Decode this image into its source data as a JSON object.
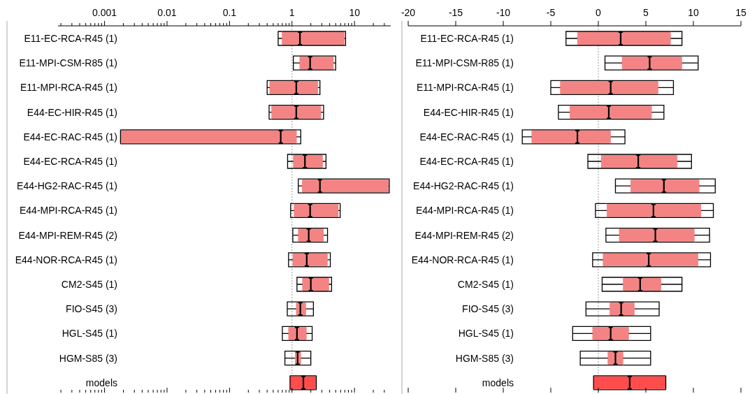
{
  "chart_data": [
    {
      "type": "box",
      "orientation": "horizontal",
      "log": "x",
      "categories": [
        "E11-EC-RCA-R45 (1)",
        "E11-MPI-CSM-R85 (1)",
        "E11-MPI-RCA-R45 (1)",
        "E44-EC-HIR-R45 (1)",
        "E44-EC-RAC-R45 (1)",
        "E44-EC-RCA-R45 (1)",
        "E44-HG2-RAC-R45 (1)",
        "E44-MPI-RCA-R45 (1)",
        "E44-MPI-REM-R45 (2)",
        "E44-NOR-RCA-R45 (1)",
        "CM2-S45 (1)",
        "FIO-S45 (3)",
        "HGL-S45 (1)",
        "HGM-S85 (3)",
        "models"
      ],
      "xlim": [
        0.00018,
        38
      ],
      "xticks": [
        {
          "value": 0.0002,
          "label": null
        },
        {
          "value": 0.0003,
          "label": null
        },
        {
          "value": 0.0004,
          "label": null
        },
        {
          "value": 0.0005,
          "label": null
        },
        {
          "value": 0.0006,
          "label": null
        },
        {
          "value": 0.0007,
          "label": null
        },
        {
          "value": 0.0008,
          "label": null
        },
        {
          "value": 0.0009,
          "label": null
        },
        0.001,
        {
          "value": 0.002,
          "label": null
        },
        {
          "value": 0.003,
          "label": null
        },
        {
          "value": 0.004,
          "label": null
        },
        {
          "value": 0.005,
          "label": null
        },
        {
          "value": 0.006,
          "label": null
        },
        {
          "value": 0.007,
          "label": null
        },
        {
          "value": 0.008,
          "label": null
        },
        {
          "value": 0.009,
          "label": null
        },
        0.01,
        {
          "value": 0.02,
          "label": null
        },
        {
          "value": 0.03,
          "label": null
        },
        {
          "value": 0.04,
          "label": null
        },
        {
          "value": 0.05,
          "label": null
        },
        {
          "value": 0.06,
          "label": null
        },
        {
          "value": 0.07,
          "label": null
        },
        {
          "value": 0.08,
          "label": null
        },
        {
          "value": 0.09,
          "label": null
        },
        0.1,
        {
          "value": 0.2,
          "label": null
        },
        {
          "value": 0.3,
          "label": null
        },
        {
          "value": 0.4,
          "label": null
        },
        {
          "value": 0.5,
          "label": null
        },
        {
          "value": 0.6,
          "label": null
        },
        {
          "value": 0.7,
          "label": null
        },
        {
          "value": 0.8,
          "label": null
        },
        {
          "value": 0.9,
          "label": null
        },
        1,
        {
          "value": 2,
          "label": null
        },
        {
          "value": 3,
          "label": null
        },
        {
          "value": 4,
          "label": null
        },
        {
          "value": 5,
          "label": null
        },
        {
          "value": 6,
          "label": null
        },
        {
          "value": 7,
          "label": null
        },
        {
          "value": 8,
          "label": null
        },
        {
          "value": 9,
          "label": null
        },
        10,
        {
          "value": 20,
          "label": null
        },
        {
          "value": 30,
          "label": null
        }
      ],
      "ref_lines": [
        {
          "axis": "x",
          "value": 1,
          "color": "#999999",
          "line_style": "dotted"
        }
      ],
      "series": [
        {
          "colors": [
            "#f48484",
            "#f48484",
            "#f48484",
            "#f48484",
            "#f48484",
            "#f48484",
            "#f48484",
            "#f48484",
            "#f48484",
            "#f48484",
            "#f48484",
            "#f48484",
            "#f48484",
            "#f48484",
            "#ff4d4d"
          ],
          "boxes": [
            {
              "low": 0.6,
              "q1": 0.69,
              "median": 1.34,
              "q3": 6.9,
              "high": 7.2
            },
            {
              "low": 1.05,
              "q1": 1.33,
              "median": 1.95,
              "q3": 4.6,
              "high": 5.0
            },
            {
              "low": 0.4,
              "q1": 0.44,
              "median": 1.17,
              "q3": 2.6,
              "high": 2.8
            },
            {
              "low": 0.43,
              "q1": 0.47,
              "median": 1.17,
              "q3": 2.9,
              "high": 3.2
            },
            {
              "low": 0.0018,
              "q1": 0.0018,
              "median": 0.66,
              "q3": 1.18,
              "high": 1.38
            },
            {
              "low": 0.85,
              "q1": 1.05,
              "median": 1.61,
              "q3": 3.1,
              "high": 3.5
            },
            {
              "low": 1.26,
              "q1": 1.45,
              "median": 2.8,
              "q3": 35,
              "high": 36
            },
            {
              "low": 0.95,
              "q1": 1.08,
              "median": 1.95,
              "q3": 5.5,
              "high": 5.9
            },
            {
              "low": 1.03,
              "q1": 1.26,
              "median": 1.85,
              "q3": 3.2,
              "high": 3.7
            },
            {
              "low": 0.88,
              "q1": 1.03,
              "median": 1.72,
              "q3": 3.7,
              "high": 4.1
            },
            {
              "low": 1.2,
              "q1": 1.47,
              "median": 2.0,
              "q3": 3.9,
              "high": 4.3
            },
            {
              "low": 0.84,
              "q1": 1.17,
              "median": 1.36,
              "q3": 1.67,
              "high": 2.2
            },
            {
              "low": 0.7,
              "q1": 0.88,
              "median": 1.2,
              "q3": 1.7,
              "high": 2.1
            },
            {
              "low": 0.77,
              "q1": 1.12,
              "median": 1.23,
              "q3": 1.38,
              "high": 2.0
            },
            {
              "low": 0.93,
              "q1": 0.93,
              "median": 1.52,
              "q3": 2.45,
              "high": 2.45
            }
          ]
        }
      ]
    },
    {
      "type": "box",
      "orientation": "horizontal",
      "categories": [
        "E11-EC-RCA-R45 (1)",
        "E11-MPI-CSM-R85 (1)",
        "E11-MPI-RCA-R45 (1)",
        "E44-EC-HIR-R45 (1)",
        "E44-EC-RAC-R45 (1)",
        "E44-EC-RCA-R45 (1)",
        "E44-HG2-RAC-R45 (1)",
        "E44-MPI-RCA-R45 (1)",
        "E44-MPI-REM-R45 (2)",
        "E44-NOR-RCA-R45 (1)",
        "CM2-S45 (1)",
        "FIO-S45 (3)",
        "HGL-S45 (1)",
        "HGM-S85 (3)",
        "models"
      ],
      "xlim": [
        -20,
        15
      ],
      "xticks": [
        -20,
        -15,
        -10,
        -5,
        0,
        5,
        10,
        15
      ],
      "ref_lines": [
        {
          "axis": "x",
          "value": 0,
          "color": "#999999",
          "line_style": "dotted"
        }
      ],
      "series": [
        {
          "colors": [
            "#f48484",
            "#f48484",
            "#f48484",
            "#f48484",
            "#f48484",
            "#f48484",
            "#f48484",
            "#f48484",
            "#f48484",
            "#f48484",
            "#f48484",
            "#f48484",
            "#f48484",
            "#f48484",
            "#ff4d4d"
          ],
          "boxes": [
            {
              "low": -3.4,
              "q1": -2.2,
              "median": 2.35,
              "q3": 7.6,
              "high": 8.8
            },
            {
              "low": 0.7,
              "q1": 2.5,
              "median": 5.4,
              "q3": 8.8,
              "high": 10.5
            },
            {
              "low": -5.0,
              "q1": -4.0,
              "median": 1.3,
              "q3": 6.3,
              "high": 7.9
            },
            {
              "low": -4.2,
              "q1": -3.0,
              "median": 1.1,
              "q3": 5.6,
              "high": 6.9
            },
            {
              "low": -8.0,
              "q1": -7.0,
              "median": -2.2,
              "q3": 1.3,
              "high": 2.8
            },
            {
              "low": -1.1,
              "q1": 0.3,
              "median": 4.2,
              "q3": 8.3,
              "high": 9.8
            },
            {
              "low": 1.8,
              "q1": 3.4,
              "median": 6.9,
              "q3": 10.6,
              "high": 12.3
            },
            {
              "low": -0.3,
              "q1": 0.9,
              "median": 5.8,
              "q3": 10.8,
              "high": 12.1
            },
            {
              "low": 0.8,
              "q1": 2.2,
              "median": 6.0,
              "q3": 10.1,
              "high": 11.7
            },
            {
              "low": -0.6,
              "q1": 0.5,
              "median": 5.3,
              "q3": 10.5,
              "high": 11.8
            },
            {
              "low": 0.4,
              "q1": 2.6,
              "median": 4.4,
              "q3": 6.6,
              "high": 8.8
            },
            {
              "low": -1.3,
              "q1": 1.2,
              "median": 2.4,
              "q3": 3.8,
              "high": 6.4
            },
            {
              "low": -2.7,
              "q1": -0.6,
              "median": 1.3,
              "q3": 3.2,
              "high": 5.5
            },
            {
              "low": -1.9,
              "q1": 1.0,
              "median": 1.8,
              "q3": 2.6,
              "high": 5.5
            },
            {
              "low": -0.5,
              "q1": -0.5,
              "median": 3.3,
              "q3": 7.1,
              "high": 7.1
            }
          ]
        }
      ]
    }
  ]
}
